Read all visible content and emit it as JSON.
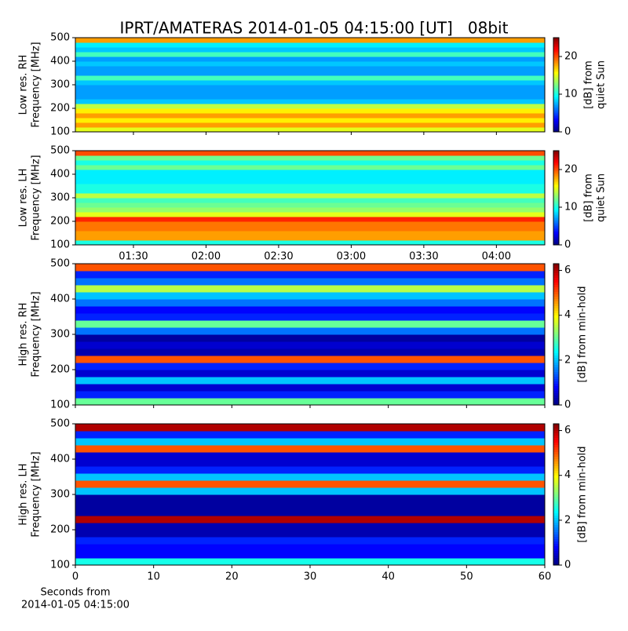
{
  "chart_data": [
    {
      "type": "heatmap",
      "title": "IPRT/AMATERAS 2014-01-05 04:15:00 [UT]   08bit",
      "ylabel": [
        "Low res. RH",
        "Frequency [MHz]"
      ],
      "colorbar_label": [
        "[dB] from",
        "quiet Sun"
      ],
      "cmap": "jet",
      "y_bins": [
        100,
        120,
        140,
        160,
        180,
        200,
        220,
        240,
        260,
        280,
        300,
        320,
        340,
        360,
        380,
        400,
        420,
        440,
        460,
        480,
        500
      ],
      "values": [
        15,
        18,
        16,
        18,
        16,
        14,
        8,
        7,
        7,
        7,
        8,
        11,
        7,
        7,
        8,
        7,
        11,
        8,
        9,
        18
      ],
      "xlim": [
        66,
        260
      ],
      "xticks": [
        90,
        120,
        150,
        180,
        210,
        240
      ],
      "xticklabels": false,
      "ylim": [
        100,
        500
      ],
      "yticks": [
        100,
        200,
        300,
        400,
        500
      ],
      "clim": [
        0,
        25
      ],
      "cticks": [
        0,
        10,
        20
      ]
    },
    {
      "type": "heatmap",
      "ylabel": [
        "Low res. LH",
        "Frequency [MHz]"
      ],
      "colorbar_label": [
        "[dB] from",
        "quiet Sun"
      ],
      "cmap": "jet",
      "y_bins": [
        100,
        120,
        140,
        160,
        180,
        200,
        220,
        240,
        260,
        280,
        300,
        320,
        340,
        360,
        380,
        400,
        420,
        440,
        460,
        480,
        500
      ],
      "values": [
        10,
        18,
        18,
        19,
        19,
        21,
        15,
        13,
        12,
        11,
        14,
        10,
        10,
        9,
        9,
        9,
        12,
        10,
        12,
        20
      ],
      "xlim": [
        66,
        260
      ],
      "xticks": [
        {
          "value": 90,
          "label": "01:30"
        },
        {
          "value": 120,
          "label": "02:00"
        },
        {
          "value": 150,
          "label": "02:30"
        },
        {
          "value": 180,
          "label": "03:00"
        },
        {
          "value": 210,
          "label": "03:30"
        },
        {
          "value": 240,
          "label": "04:00"
        }
      ],
      "xticklabels": true,
      "ylim": [
        100,
        500
      ],
      "yticks": [
        100,
        200,
        300,
        400,
        500
      ],
      "clim": [
        0,
        25
      ],
      "cticks": [
        0,
        10,
        20
      ]
    },
    {
      "type": "heatmap",
      "ylabel": [
        "High res. RH",
        "Frequency [MHz]"
      ],
      "colorbar_label": [
        "[dB] from min-hold"
      ],
      "cmap": "jet",
      "y_bins": [
        100,
        120,
        140,
        160,
        180,
        200,
        220,
        240,
        260,
        280,
        300,
        320,
        340,
        360,
        380,
        400,
        420,
        440,
        460,
        480,
        500
      ],
      "values": [
        3,
        1,
        0.5,
        2,
        0.5,
        1,
        5,
        0.3,
        0.5,
        0.2,
        1.5,
        3,
        1,
        0.8,
        1.5,
        2,
        3.5,
        1.5,
        1,
        5
      ],
      "xlim": [
        0,
        60
      ],
      "xticks": [
        0,
        10,
        20,
        30,
        40,
        50,
        60
      ],
      "xticklabels": false,
      "ylim": [
        100,
        500
      ],
      "yticks": [
        100,
        200,
        300,
        400,
        500
      ],
      "clim": [
        0,
        6.3
      ],
      "cticks": [
        0,
        2,
        4,
        6
      ]
    },
    {
      "type": "heatmap",
      "ylabel": [
        "High res. LH",
        "Frequency [MHz]"
      ],
      "colorbar_label": [
        "[dB] from min-hold"
      ],
      "xlabel": [
        "Seconds from",
        "2014-01-05 04:15:00"
      ],
      "cmap": "jet",
      "y_bins": [
        100,
        120,
        140,
        160,
        180,
        200,
        220,
        240,
        260,
        280,
        300,
        320,
        340,
        360,
        380,
        400,
        420,
        440,
        460,
        480,
        500
      ],
      "values": [
        2.5,
        0.8,
        0.8,
        1,
        0.3,
        0.3,
        6,
        0.2,
        0.2,
        0.2,
        2,
        5,
        2,
        1,
        0.5,
        0.5,
        5,
        2,
        1,
        6
      ],
      "xlim": [
        0,
        60
      ],
      "xticks": [
        0,
        10,
        20,
        30,
        40,
        50,
        60
      ],
      "xticklabels": true,
      "ylim": [
        100,
        500
      ],
      "yticks": [
        100,
        200,
        300,
        400,
        500
      ],
      "clim": [
        0,
        6.3
      ],
      "cticks": [
        0,
        2,
        4,
        6
      ]
    }
  ]
}
